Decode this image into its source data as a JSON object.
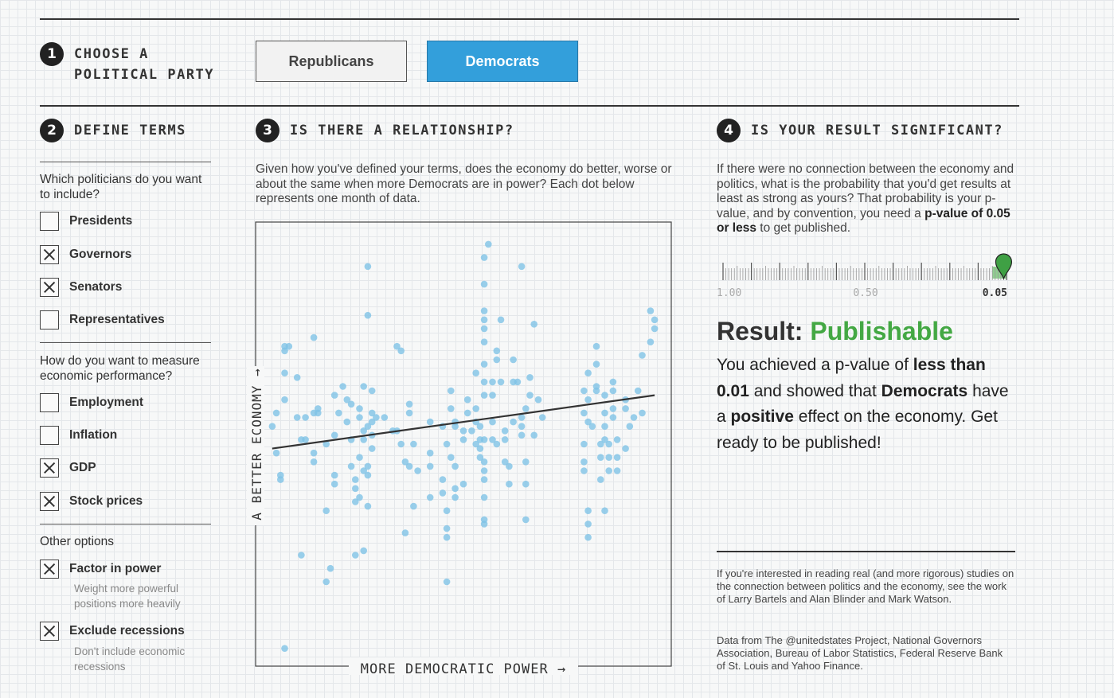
{
  "step1": {
    "num": "1",
    "line1": "CHOOSE A",
    "line2": "POLITICAL PARTY"
  },
  "parties": {
    "republicans": "Republicans",
    "democrats": "Democrats",
    "selected": "Democrats"
  },
  "step2": {
    "num": "2",
    "heading": "DEFINE TERMS",
    "q_politicians": "Which politicians do you want to include?",
    "politicians": [
      {
        "label": "Presidents",
        "checked": false
      },
      {
        "label": "Governors",
        "checked": true
      },
      {
        "label": "Senators",
        "checked": true
      },
      {
        "label": "Representatives",
        "checked": false
      }
    ],
    "q_economy": "How do you want to measure economic performance?",
    "measures": [
      {
        "label": "Employment",
        "checked": false
      },
      {
        "label": "Inflation",
        "checked": false
      },
      {
        "label": "GDP",
        "checked": true
      },
      {
        "label": "Stock prices",
        "checked": true
      }
    ],
    "other_heading": "Other options",
    "options": [
      {
        "label": "Factor in power",
        "checked": true,
        "sub": "Weight more powerful positions more heavily"
      },
      {
        "label": "Exclude recessions",
        "checked": true,
        "sub": "Don't include economic recessions"
      }
    ]
  },
  "step3": {
    "num": "3",
    "heading": "IS THERE A RELATIONSHIP?",
    "text": "Given how you've defined your terms, does the economy do better, worse or about the same when more Democrats are in power? Each dot below represents one month of data."
  },
  "chart_data": {
    "type": "scatter",
    "xlabel": "MORE DEMOCRATIC POWER →",
    "ylabel": "A BETTER ECONOMY →",
    "point_color": "#7fc3e6",
    "line_color": "#333333",
    "trend_line": {
      "x": [
        0.04,
        0.96
      ],
      "y": [
        0.49,
        0.61
      ]
    },
    "points": [
      [
        0.05,
        0.48
      ],
      [
        0.06,
        0.42
      ],
      [
        0.06,
        0.43
      ],
      [
        0.04,
        0.54
      ],
      [
        0.05,
        0.57
      ],
      [
        0.07,
        0.6
      ],
      [
        0.07,
        0.71
      ],
      [
        0.07,
        0.72
      ],
      [
        0.07,
        0.66
      ],
      [
        0.08,
        0.72
      ],
      [
        0.1,
        0.65
      ],
      [
        0.1,
        0.56
      ],
      [
        0.11,
        0.51
      ],
      [
        0.12,
        0.56
      ],
      [
        0.12,
        0.51
      ],
      [
        0.14,
        0.57
      ],
      [
        0.14,
        0.74
      ],
      [
        0.14,
        0.48
      ],
      [
        0.14,
        0.46
      ],
      [
        0.15,
        0.57
      ],
      [
        0.15,
        0.58
      ],
      [
        0.17,
        0.5
      ],
      [
        0.19,
        0.61
      ],
      [
        0.19,
        0.52
      ],
      [
        0.19,
        0.43
      ],
      [
        0.19,
        0.41
      ],
      [
        0.17,
        0.35
      ],
      [
        0.2,
        0.57
      ],
      [
        0.21,
        0.63
      ],
      [
        0.22,
        0.6
      ],
      [
        0.22,
        0.55
      ],
      [
        0.23,
        0.59
      ],
      [
        0.23,
        0.51
      ],
      [
        0.23,
        0.45
      ],
      [
        0.24,
        0.4
      ],
      [
        0.24,
        0.42
      ],
      [
        0.24,
        0.37
      ],
      [
        0.25,
        0.56
      ],
      [
        0.25,
        0.58
      ],
      [
        0.25,
        0.47
      ],
      [
        0.25,
        0.38
      ],
      [
        0.26,
        0.63
      ],
      [
        0.26,
        0.51
      ],
      [
        0.26,
        0.53
      ],
      [
        0.26,
        0.44
      ],
      [
        0.27,
        0.54
      ],
      [
        0.27,
        0.36
      ],
      [
        0.27,
        0.43
      ],
      [
        0.28,
        0.49
      ],
      [
        0.28,
        0.55
      ],
      [
        0.28,
        0.52
      ],
      [
        0.27,
        0.9
      ],
      [
        0.27,
        0.79
      ],
      [
        0.27,
        0.45
      ],
      [
        0.28,
        0.62
      ],
      [
        0.28,
        0.57
      ],
      [
        0.29,
        0.56
      ],
      [
        0.31,
        0.56
      ],
      [
        0.33,
        0.53
      ],
      [
        0.34,
        0.53
      ],
      [
        0.35,
        0.5
      ],
      [
        0.34,
        0.72
      ],
      [
        0.35,
        0.71
      ],
      [
        0.36,
        0.46
      ],
      [
        0.37,
        0.45
      ],
      [
        0.37,
        0.57
      ],
      [
        0.37,
        0.59
      ],
      [
        0.38,
        0.5
      ],
      [
        0.39,
        0.44
      ],
      [
        0.38,
        0.36
      ],
      [
        0.36,
        0.3
      ],
      [
        0.26,
        0.26
      ],
      [
        0.24,
        0.25
      ],
      [
        0.18,
        0.22
      ],
      [
        0.17,
        0.19
      ],
      [
        0.11,
        0.25
      ],
      [
        0.07,
        0.04
      ],
      [
        0.42,
        0.45
      ],
      [
        0.42,
        0.38
      ],
      [
        0.42,
        0.55
      ],
      [
        0.42,
        0.48
      ],
      [
        0.45,
        0.54
      ],
      [
        0.46,
        0.5
      ],
      [
        0.45,
        0.42
      ],
      [
        0.45,
        0.39
      ],
      [
        0.46,
        0.35
      ],
      [
        0.46,
        0.31
      ],
      [
        0.46,
        0.29
      ],
      [
        0.46,
        0.19
      ],
      [
        0.47,
        0.58
      ],
      [
        0.47,
        0.62
      ],
      [
        0.48,
        0.54
      ],
      [
        0.48,
        0.55
      ],
      [
        0.47,
        0.47
      ],
      [
        0.48,
        0.45
      ],
      [
        0.48,
        0.4
      ],
      [
        0.48,
        0.38
      ],
      [
        0.5,
        0.41
      ],
      [
        0.5,
        0.51
      ],
      [
        0.5,
        0.53
      ],
      [
        0.51,
        0.57
      ],
      [
        0.51,
        0.6
      ],
      [
        0.52,
        0.53
      ],
      [
        0.53,
        0.5
      ],
      [
        0.53,
        0.55
      ],
      [
        0.53,
        0.58
      ],
      [
        0.53,
        0.66
      ],
      [
        0.54,
        0.49
      ],
      [
        0.54,
        0.51
      ],
      [
        0.54,
        0.54
      ],
      [
        0.55,
        0.44
      ],
      [
        0.55,
        0.64
      ],
      [
        0.55,
        0.68
      ],
      [
        0.55,
        0.73
      ],
      [
        0.55,
        0.76
      ],
      [
        0.55,
        0.61
      ],
      [
        0.55,
        0.51
      ],
      [
        0.54,
        0.47
      ],
      [
        0.55,
        0.42
      ],
      [
        0.55,
        0.38
      ],
      [
        0.55,
        0.33
      ],
      [
        0.55,
        0.32
      ],
      [
        0.55,
        0.46
      ],
      [
        0.55,
        0.78
      ],
      [
        0.55,
        0.8
      ],
      [
        0.55,
        0.86
      ],
      [
        0.55,
        0.92
      ],
      [
        0.56,
        0.95
      ],
      [
        0.57,
        0.61
      ],
      [
        0.57,
        0.55
      ],
      [
        0.57,
        0.51
      ],
      [
        0.58,
        0.5
      ],
      [
        0.57,
        0.64
      ],
      [
        0.58,
        0.69
      ],
      [
        0.58,
        0.71
      ],
      [
        0.59,
        0.78
      ],
      [
        0.59,
        0.64
      ],
      [
        0.6,
        0.51
      ],
      [
        0.6,
        0.46
      ],
      [
        0.6,
        0.53
      ],
      [
        0.61,
        0.45
      ],
      [
        0.61,
        0.41
      ],
      [
        0.62,
        0.55
      ],
      [
        0.62,
        0.64
      ],
      [
        0.62,
        0.69
      ],
      [
        0.63,
        0.64
      ],
      [
        0.64,
        0.54
      ],
      [
        0.64,
        0.56
      ],
      [
        0.64,
        0.52
      ],
      [
        0.65,
        0.46
      ],
      [
        0.65,
        0.41
      ],
      [
        0.65,
        0.33
      ],
      [
        0.64,
        0.9
      ],
      [
        0.66,
        0.65
      ],
      [
        0.66,
        0.61
      ],
      [
        0.65,
        0.58
      ],
      [
        0.67,
        0.52
      ],
      [
        0.68,
        0.6
      ],
      [
        0.69,
        0.56
      ],
      [
        0.67,
        0.77
      ],
      [
        0.79,
        0.62
      ],
      [
        0.79,
        0.57
      ],
      [
        0.79,
        0.5
      ],
      [
        0.79,
        0.46
      ],
      [
        0.79,
        0.44
      ],
      [
        0.8,
        0.66
      ],
      [
        0.8,
        0.6
      ],
      [
        0.8,
        0.55
      ],
      [
        0.8,
        0.35
      ],
      [
        0.8,
        0.32
      ],
      [
        0.8,
        0.29
      ],
      [
        0.81,
        0.54
      ],
      [
        0.82,
        0.62
      ],
      [
        0.82,
        0.68
      ],
      [
        0.82,
        0.72
      ],
      [
        0.82,
        0.63
      ],
      [
        0.83,
        0.5
      ],
      [
        0.83,
        0.47
      ],
      [
        0.83,
        0.42
      ],
      [
        0.84,
        0.61
      ],
      [
        0.84,
        0.57
      ],
      [
        0.84,
        0.54
      ],
      [
        0.84,
        0.35
      ],
      [
        0.84,
        0.51
      ],
      [
        0.85,
        0.5
      ],
      [
        0.85,
        0.47
      ],
      [
        0.85,
        0.44
      ],
      [
        0.86,
        0.56
      ],
      [
        0.86,
        0.58
      ],
      [
        0.86,
        0.62
      ],
      [
        0.86,
        0.64
      ],
      [
        0.87,
        0.51
      ],
      [
        0.87,
        0.47
      ],
      [
        0.87,
        0.44
      ],
      [
        0.89,
        0.6
      ],
      [
        0.89,
        0.58
      ],
      [
        0.89,
        0.49
      ],
      [
        0.9,
        0.54
      ],
      [
        0.91,
        0.56
      ],
      [
        0.92,
        0.62
      ],
      [
        0.93,
        0.57
      ],
      [
        0.93,
        0.7
      ],
      [
        0.95,
        0.73
      ],
      [
        0.96,
        0.76
      ],
      [
        0.96,
        0.78
      ],
      [
        0.95,
        0.8
      ]
    ]
  },
  "step4": {
    "num": "4",
    "heading": "IS YOUR RESULT SIGNIFICANT?",
    "text_a": "If there were no connection between the economy and politics, what is the probability that you'd get results at least as strong as yours? That probability is your p-value, and by convention, you need a ",
    "text_b": "p-value of 0.05 or less",
    "text_c": " to get published.",
    "ticks": [
      "1.00",
      "0.50",
      "0.05"
    ],
    "pvalue": 0.01,
    "result_prefix": "Result: ",
    "result_word": "Publishable",
    "result_color": "#44a844",
    "r1": "You achieved a p-value of ",
    "r2": "less than 0.01",
    "r3": " and showed that ",
    "r4": "Democrats",
    "r5": " have a ",
    "r6": "positive",
    "r7": " effect on the economy. Get ready to be published!"
  },
  "notes": {
    "n1": "If you're interested in reading real (and more rigorous) studies on the connection between politics and the economy, see the work of Larry Bartels and Alan Blinder and Mark Watson.",
    "n2": "Data from The @unitedstates Project, National Governors Association, Bureau of Labor Statistics, Federal Reserve Bank of St. Louis and Yahoo Finance."
  }
}
